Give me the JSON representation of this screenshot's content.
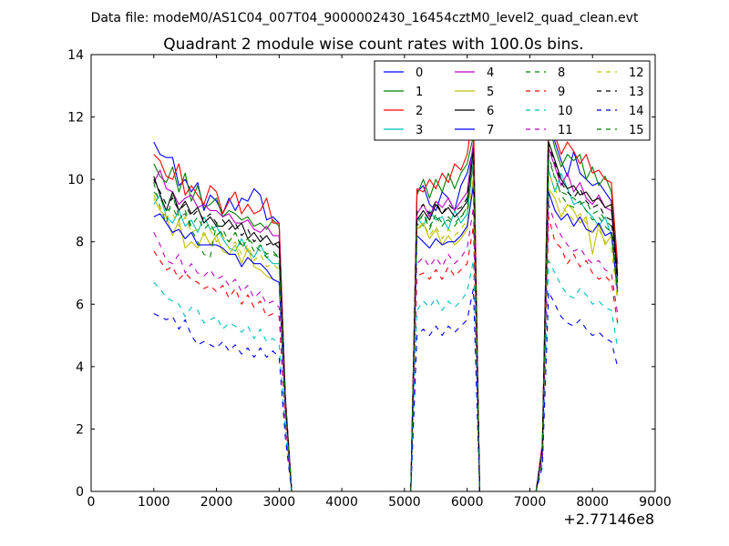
{
  "chart_data": {
    "type": "line",
    "suptitle": "Data file: modeM0/AS1C04_007T04_9000002430_16454cztM0_level2_quad_clean.evt",
    "title": "Quadrant 2 module wise count rates with 100.0s bins.",
    "xlabel": "",
    "ylabel": "",
    "xlim": [
      0,
      9000
    ],
    "ylim": [
      0,
      14
    ],
    "x_offset_text": "+2.77146e8",
    "xticks": [
      0,
      1000,
      2000,
      3000,
      4000,
      5000,
      6000,
      7000,
      8000,
      9000
    ],
    "yticks": [
      0,
      2,
      4,
      6,
      8,
      10,
      12,
      14
    ],
    "grid": false,
    "legend": {
      "position": "top-right",
      "ncol": 4
    },
    "x": [
      1000,
      1100,
      1200,
      1300,
      1400,
      1500,
      1600,
      1700,
      1800,
      1900,
      2000,
      2100,
      2200,
      2300,
      2400,
      2500,
      2600,
      2700,
      2800,
      2900,
      3000,
      3100,
      3200,
      3300,
      5100,
      5200,
      5300,
      5400,
      5500,
      5600,
      5700,
      5800,
      5900,
      6000,
      6100,
      6200,
      6300,
      7100,
      7200,
      7300,
      7400,
      7500,
      7600,
      7700,
      7800,
      7900,
      8000,
      8100,
      8200,
      8300,
      8400
    ],
    "series": [
      {
        "name": "0",
        "color": "#0000ff",
        "dash": "solid",
        "values": [
          11.2,
          10.8,
          10.7,
          10.7,
          9.8,
          10.0,
          9.6,
          9.9,
          9.0,
          9.5,
          9.3,
          8.9,
          9.4,
          9.0,
          9.4,
          9.3,
          9.7,
          9.5,
          8.7,
          8.8,
          8.6,
          3.0,
          0.0,
          0.0,
          0.0,
          9.6,
          9.8,
          9.2,
          9.0,
          9.6,
          9.4,
          9.0,
          9.8,
          10.2,
          11.0,
          0.0,
          0.0,
          0.0,
          1.5,
          12.1,
          11.2,
          10.6,
          10.1,
          10.9,
          10.2,
          10.0,
          9.8,
          9.9,
          9.6,
          9.3,
          7.0
        ]
      },
      {
        "name": "1",
        "color": "#008000",
        "dash": "solid",
        "values": [
          10.5,
          10.1,
          9.9,
          10.4,
          9.6,
          10.2,
          9.3,
          9.8,
          9.1,
          9.2,
          9.4,
          8.8,
          9.0,
          8.9,
          8.7,
          8.8,
          8.5,
          8.6,
          8.4,
          8.7,
          8.5,
          3.0,
          0.0,
          0.0,
          0.0,
          9.5,
          10.0,
          9.4,
          10.0,
          9.6,
          10.2,
          9.7,
          10.2,
          10.5,
          11.4,
          0.0,
          0.0,
          0.0,
          1.4,
          11.8,
          11.0,
          10.4,
          10.8,
          10.6,
          10.8,
          10.0,
          10.4,
          9.8,
          10.1,
          9.6,
          7.3
        ]
      },
      {
        "name": "2",
        "color": "#ff0000",
        "dash": "solid",
        "values": [
          10.8,
          10.6,
          10.1,
          10.0,
          10.5,
          9.5,
          9.8,
          9.5,
          9.2,
          9.8,
          9.6,
          8.9,
          9.3,
          9.6,
          8.9,
          9.2,
          8.9,
          9.0,
          9.4,
          8.6,
          8.6,
          3.0,
          0.0,
          0.0,
          0.0,
          9.7,
          9.6,
          10.0,
          9.7,
          10.2,
          9.9,
          10.5,
          10.3,
          10.8,
          12.2,
          0.0,
          0.0,
          0.0,
          1.5,
          11.6,
          11.4,
          10.8,
          11.2,
          10.9,
          10.5,
          10.8,
          10.2,
          10.3,
          10.0,
          9.9,
          7.3
        ]
      },
      {
        "name": "3",
        "color": "#00bfbf",
        "dash": "solid",
        "values": [
          9.2,
          9.5,
          8.8,
          8.6,
          9.0,
          8.5,
          8.7,
          8.3,
          8.8,
          8.4,
          8.5,
          8.1,
          7.8,
          7.7,
          8.1,
          7.7,
          7.5,
          7.9,
          7.5,
          7.3,
          7.3,
          2.8,
          0.0,
          0.0,
          0.0,
          8.8,
          8.5,
          9.0,
          8.7,
          8.8,
          8.4,
          9.0,
          8.6,
          8.9,
          10.6,
          0.0,
          0.0,
          0.0,
          1.3,
          10.3,
          9.6,
          10.2,
          9.7,
          9.2,
          9.3,
          9.0,
          8.8,
          8.5,
          8.8,
          8.2,
          6.5
        ]
      },
      {
        "name": "4",
        "color": "#bf00bf",
        "dash": "solid",
        "values": [
          9.9,
          10.3,
          9.7,
          9.6,
          9.2,
          9.4,
          9.5,
          9.1,
          9.2,
          9.0,
          9.0,
          8.8,
          8.9,
          8.6,
          8.6,
          8.7,
          8.4,
          8.3,
          8.5,
          8.2,
          8.2,
          2.9,
          0.0,
          0.0,
          0.0,
          8.9,
          9.2,
          8.8,
          9.3,
          9.1,
          9.4,
          9.0,
          9.3,
          9.6,
          11.2,
          0.0,
          0.0,
          0.0,
          1.4,
          11.0,
          10.4,
          9.8,
          10.2,
          9.6,
          9.9,
          9.4,
          9.2,
          9.5,
          9.1,
          9.0,
          6.8
        ]
      },
      {
        "name": "5",
        "color": "#bfbf00",
        "dash": "solid",
        "values": [
          9.4,
          9.0,
          8.8,
          8.2,
          8.7,
          7.8,
          8.0,
          7.8,
          8.3,
          7.9,
          8.2,
          7.7,
          7.6,
          7.9,
          7.3,
          7.8,
          7.2,
          7.1,
          6.9,
          6.8,
          6.7,
          2.6,
          0.0,
          0.0,
          0.0,
          8.4,
          8.6,
          8.1,
          8.4,
          7.9,
          8.2,
          7.9,
          8.1,
          8.4,
          10.1,
          0.0,
          0.0,
          0.0,
          1.2,
          9.7,
          9.4,
          8.8,
          9.2,
          9.0,
          8.6,
          8.8,
          7.6,
          8.6,
          7.9,
          8.2,
          6.3
        ]
      },
      {
        "name": "6",
        "color": "#000000",
        "dash": "solid",
        "values": [
          10.1,
          9.5,
          9.0,
          9.6,
          9.0,
          9.3,
          8.9,
          9.1,
          8.6,
          8.8,
          8.5,
          8.5,
          8.7,
          8.4,
          8.6,
          8.1,
          8.3,
          8.0,
          8.2,
          7.9,
          8.0,
          2.8,
          0.0,
          0.0,
          0.0,
          8.7,
          9.0,
          8.7,
          9.2,
          8.9,
          9.1,
          8.8,
          9.0,
          9.3,
          10.9,
          0.0,
          0.0,
          0.0,
          1.4,
          11.2,
          10.6,
          10.0,
          9.7,
          9.8,
          9.5,
          9.6,
          9.3,
          9.4,
          9.1,
          9.2,
          6.9
        ]
      },
      {
        "name": "7",
        "color": "#0000ff",
        "dash": "solid",
        "values": [
          8.8,
          8.9,
          8.6,
          8.3,
          8.4,
          8.1,
          8.3,
          7.9,
          7.9,
          7.9,
          7.9,
          7.8,
          7.6,
          7.6,
          7.2,
          7.5,
          7.3,
          7.3,
          7.1,
          6.8,
          6.7,
          2.6,
          0.0,
          0.0,
          0.0,
          8.2,
          8.0,
          7.8,
          8.1,
          7.9,
          8.0,
          8.0,
          8.2,
          8.5,
          9.8,
          0.0,
          0.0,
          0.0,
          1.2,
          9.6,
          9.0,
          8.7,
          8.9,
          8.5,
          8.8,
          8.4,
          8.3,
          8.6,
          8.2,
          8.3,
          6.4
        ]
      },
      {
        "name": "8",
        "color": "#008000",
        "dash": "dashed",
        "values": [
          9.9,
          9.1,
          8.6,
          9.5,
          8.8,
          8.9,
          8.4,
          8.0,
          7.6,
          7.5,
          8.6,
          8.2,
          8.0,
          8.3,
          7.8,
          8.1,
          7.9,
          7.7,
          7.5,
          7.6,
          7.5,
          2.7,
          0.0,
          0.0,
          0.0,
          8.5,
          8.9,
          8.4,
          8.9,
          8.6,
          8.7,
          8.5,
          8.8,
          9.0,
          10.5,
          0.0,
          0.0,
          0.0,
          1.3,
          10.8,
          10.0,
          9.6,
          9.5,
          9.4,
          9.2,
          9.3,
          8.9,
          9.0,
          8.7,
          8.5,
          6.6
        ]
      },
      {
        "name": "9",
        "color": "#ff0000",
        "dash": "dashed",
        "values": [
          7.7,
          7.4,
          7.1,
          7.2,
          6.8,
          7.0,
          6.8,
          6.7,
          6.5,
          6.6,
          6.4,
          6.6,
          6.2,
          6.5,
          6.0,
          6.3,
          5.9,
          6.1,
          5.6,
          5.7,
          5.6,
          2.2,
          0.0,
          0.0,
          0.0,
          6.9,
          7.0,
          6.8,
          7.1,
          6.8,
          7.2,
          6.9,
          7.1,
          7.3,
          8.5,
          0.0,
          0.0,
          0.0,
          1.0,
          8.8,
          8.0,
          7.8,
          7.3,
          7.6,
          7.2,
          7.4,
          7.0,
          6.8,
          6.9,
          6.7,
          5.4
        ]
      },
      {
        "name": "10",
        "color": "#00bfbf",
        "dash": "dashed",
        "values": [
          6.7,
          6.5,
          6.2,
          6.1,
          6.0,
          5.6,
          5.9,
          5.8,
          5.4,
          5.5,
          5.6,
          5.2,
          5.4,
          5.3,
          5.1,
          5.3,
          4.9,
          5.2,
          4.8,
          4.9,
          4.7,
          1.9,
          0.0,
          0.0,
          0.0,
          5.8,
          6.1,
          5.9,
          6.2,
          5.8,
          6.1,
          5.9,
          6.1,
          6.4,
          7.4,
          0.0,
          0.0,
          0.0,
          0.9,
          7.4,
          7.0,
          6.6,
          6.3,
          6.2,
          6.5,
          6.3,
          6.0,
          6.1,
          5.9,
          5.8,
          4.6
        ]
      },
      {
        "name": "11",
        "color": "#bf00bf",
        "dash": "dashed",
        "values": [
          8.3,
          7.9,
          7.4,
          7.3,
          7.6,
          7.0,
          7.3,
          7.0,
          6.9,
          7.1,
          6.8,
          6.9,
          6.6,
          6.8,
          6.4,
          6.6,
          6.2,
          6.4,
          6.0,
          6.1,
          5.9,
          2.3,
          0.0,
          0.0,
          0.0,
          7.3,
          7.5,
          7.2,
          7.5,
          7.2,
          7.6,
          7.3,
          7.5,
          7.8,
          9.1,
          0.0,
          0.0,
          0.0,
          1.1,
          9.2,
          8.6,
          8.2,
          7.9,
          7.7,
          7.8,
          7.5,
          7.3,
          7.4,
          7.1,
          7.0,
          5.7
        ]
      },
      {
        "name": "12",
        "color": "#bfbf00",
        "dash": "dashed",
        "values": [
          9.5,
          9.1,
          8.8,
          8.9,
          8.5,
          8.8,
          8.3,
          8.4,
          8.2,
          8.4,
          8.0,
          8.2,
          7.8,
          8.0,
          7.6,
          7.9,
          7.4,
          7.6,
          7.2,
          7.3,
          7.1,
          2.7,
          0.0,
          0.0,
          0.0,
          8.3,
          8.6,
          8.2,
          8.5,
          8.1,
          8.4,
          8.2,
          8.4,
          8.7,
          10.0,
          0.0,
          0.0,
          0.0,
          1.2,
          10.2,
          9.7,
          9.2,
          8.9,
          8.7,
          8.9,
          8.6,
          8.3,
          8.4,
          8.0,
          7.8,
          6.1
        ]
      },
      {
        "name": "13",
        "color": "#000000",
        "dash": "dashed",
        "values": [
          10.0,
          9.6,
          9.2,
          9.4,
          9.0,
          9.2,
          8.8,
          9.0,
          8.7,
          8.9,
          8.6,
          8.7,
          8.4,
          8.6,
          8.2,
          8.4,
          8.0,
          8.2,
          7.9,
          8.0,
          7.8,
          2.9,
          0.0,
          0.0,
          0.0,
          9.0,
          9.2,
          8.9,
          9.3,
          8.9,
          9.2,
          9.0,
          9.1,
          9.4,
          11.0,
          0.0,
          0.0,
          0.0,
          1.4,
          11.1,
          10.5,
          9.9,
          9.6,
          9.4,
          9.7,
          9.3,
          9.1,
          9.2,
          8.8,
          8.7,
          6.7
        ]
      },
      {
        "name": "14",
        "color": "#0000ff",
        "dash": "dashed",
        "values": [
          5.7,
          5.6,
          5.5,
          5.6,
          5.2,
          5.5,
          5.0,
          4.7,
          4.8,
          4.7,
          4.6,
          4.8,
          4.5,
          4.7,
          4.4,
          4.6,
          4.3,
          4.6,
          4.3,
          4.5,
          4.3,
          1.7,
          0.0,
          0.0,
          0.0,
          5.0,
          5.2,
          5.0,
          5.3,
          5.0,
          5.3,
          5.1,
          5.3,
          5.5,
          6.5,
          0.0,
          0.0,
          0.0,
          0.8,
          6.4,
          6.0,
          5.6,
          5.4,
          5.3,
          5.5,
          5.2,
          5.0,
          5.1,
          4.9,
          4.8,
          4.0
        ]
      },
      {
        "name": "15",
        "color": "#008000",
        "dash": "dashed",
        "values": [
          9.6,
          9.4,
          9.0,
          9.1,
          8.7,
          9.0,
          8.5,
          8.8,
          8.4,
          8.6,
          8.2,
          8.4,
          8.0,
          8.3,
          7.9,
          8.1,
          7.7,
          7.9,
          7.6,
          7.7,
          7.5,
          2.8,
          0.0,
          0.0,
          0.0,
          8.6,
          8.9,
          8.5,
          8.8,
          8.5,
          8.8,
          8.6,
          8.8,
          9.1,
          10.7,
          0.0,
          0.0,
          0.0,
          1.3,
          10.6,
          10.1,
          9.5,
          9.2,
          9.1,
          9.3,
          9.0,
          8.7,
          8.8,
          8.5,
          8.3,
          6.4
        ]
      }
    ]
  }
}
